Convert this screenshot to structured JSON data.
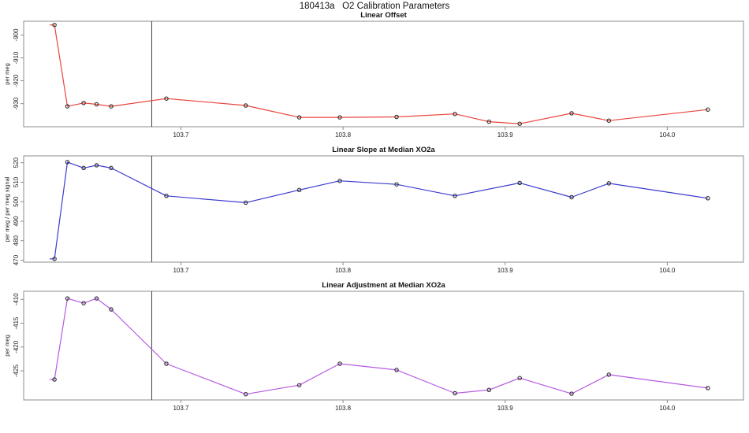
{
  "header": {
    "title": "180413a   O2 Calibration Parameters"
  },
  "colors": {
    "axis": "#8c8c8c",
    "tick_text": "#222222",
    "reference_line": "#3f3f3f",
    "marker_stroke": "#2f2f2f",
    "offset_line": "#e8453c",
    "slope_line": "#3b3bd1",
    "adjustment_line": "#b55ae0"
  },
  "x_axis": {
    "range": [
      103.603,
      104.047
    ],
    "ticks": [
      103.7,
      103.8,
      103.9,
      104.0
    ],
    "tick_labels": [
      "103.7",
      "103.8",
      "103.9",
      "104.0"
    ]
  },
  "reference_line_x": 103.682,
  "chart_data": [
    {
      "type": "line",
      "title": "Linear Offset",
      "ylabel": "per meg",
      "color": "#e8453c",
      "ylim": [
        -940.1,
        -894.0
      ],
      "yticks": [
        -930,
        -920,
        -910,
        -900
      ],
      "lead_in_x": 103.619,
      "x": [
        103.622,
        103.63,
        103.64,
        103.648,
        103.657,
        103.691,
        103.74,
        103.773,
        103.798,
        103.833,
        103.869,
        103.89,
        103.909,
        103.941,
        103.964,
        104.025
      ],
      "y": [
        -895.6,
        -931.2,
        -929.7,
        -930.3,
        -931.2,
        -927.8,
        -930.8,
        -936.0,
        -936.0,
        -935.8,
        -934.5,
        -937.9,
        -938.8,
        -934.2,
        -937.4,
        -932.6
      ]
    },
    {
      "type": "line",
      "title": "Linear Slope at Median XO2a",
      "ylabel": "per meg / per meg signal",
      "color": "#3b3bd1",
      "ylim": [
        469.0,
        523.5
      ],
      "yticks": [
        470,
        480,
        490,
        500,
        510,
        520
      ],
      "lead_in_x": 103.619,
      "x": [
        103.622,
        103.63,
        103.64,
        103.648,
        103.657,
        103.691,
        103.74,
        103.773,
        103.798,
        103.833,
        103.869,
        103.909,
        103.941,
        103.964,
        104.025
      ],
      "y": [
        470.7,
        520.3,
        517.3,
        518.7,
        517.3,
        503.0,
        499.5,
        506.0,
        510.7,
        508.9,
        503.0,
        509.6,
        502.3,
        509.4,
        501.8
      ]
    },
    {
      "type": "line",
      "title": "Linear Adjustment at Median XO2a",
      "ylabel": "per meg",
      "color": "#b55ae0",
      "ylim": [
        -431.1,
        -408.3
      ],
      "yticks": [
        -425,
        -420,
        -415,
        -410
      ],
      "lead_in_x": 103.619,
      "x": [
        103.622,
        103.63,
        103.64,
        103.648,
        103.657,
        103.691,
        103.74,
        103.773,
        103.798,
        103.833,
        103.869,
        103.89,
        103.909,
        103.941,
        103.964,
        104.025
      ],
      "y": [
        -426.8,
        -409.8,
        -410.8,
        -409.8,
        -412.1,
        -423.5,
        -429.9,
        -428.0,
        -423.5,
        -424.8,
        -429.7,
        -429.0,
        -426.5,
        -429.8,
        -425.8,
        -428.6
      ]
    }
  ]
}
